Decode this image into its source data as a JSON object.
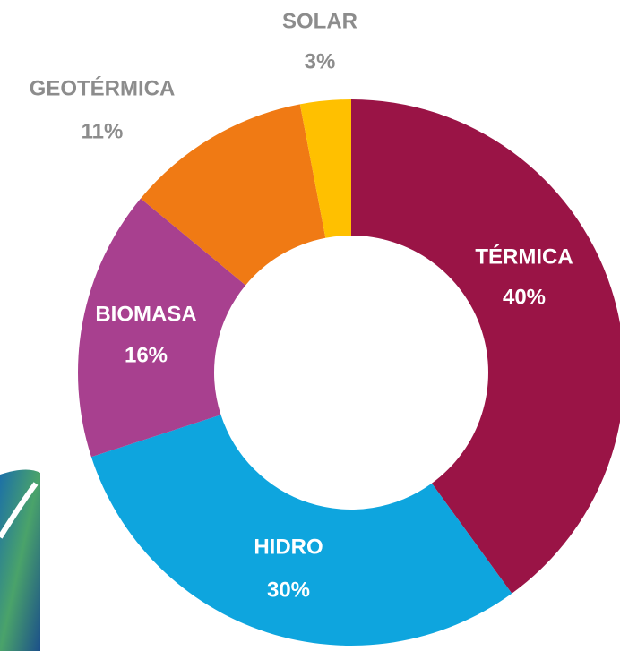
{
  "chart_data": {
    "type": "donut",
    "categories": [
      "TÉRMICA",
      "HIDRO",
      "BIOMASA",
      "GEOTÉRMICA",
      "SOLAR"
    ],
    "values": [
      40,
      30,
      16,
      11,
      3
    ],
    "value_labels": [
      "40%",
      "30%",
      "16%",
      "11%",
      "3%"
    ],
    "colors": [
      "#9a1446",
      "#0ea5de",
      "#a8408f",
      "#f07a14",
      "#ffc000"
    ]
  }
}
